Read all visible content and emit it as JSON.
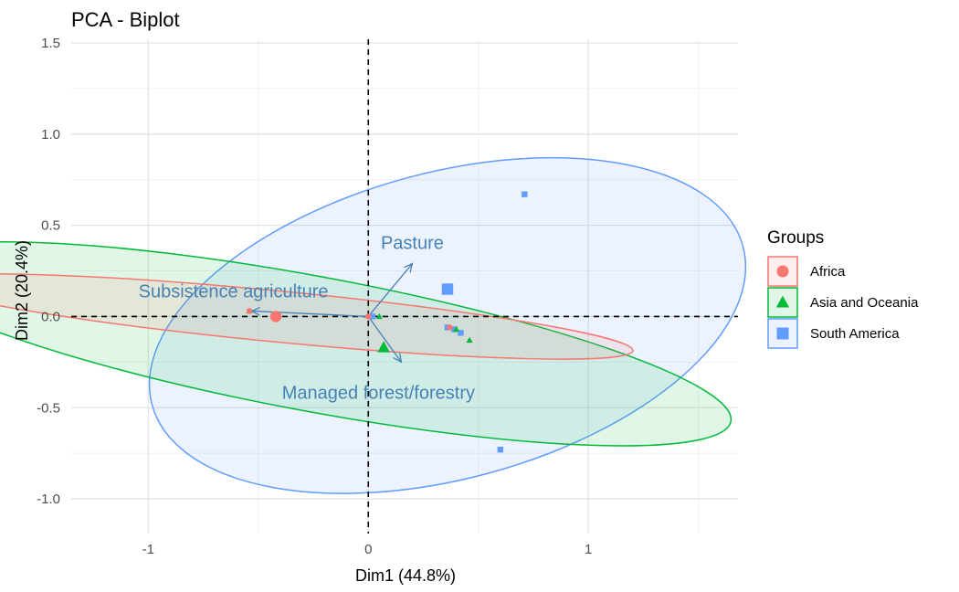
{
  "chart_data": {
    "type": "scatter",
    "title": "PCA - Biplot",
    "xlabel": "Dim1 (44.8%)",
    "ylabel": "Dim2 (20.4%)",
    "xlim": [
      -1.35,
      1.68
    ],
    "ylim": [
      -1.19,
      1.52
    ],
    "xticks": [
      -1,
      0,
      1
    ],
    "xtick_labels": [
      "-1",
      "0",
      "1"
    ],
    "yticks": [
      -1.0,
      -0.5,
      0.0,
      0.5,
      1.0,
      1.5
    ],
    "ytick_labels": [
      "-1.0",
      "-0.5",
      "0.0",
      "0.5",
      "1.0",
      "1.5"
    ],
    "grid": true,
    "legend": {
      "title": "Groups",
      "placement": "right",
      "entries": [
        {
          "label": "Africa",
          "shape": "circle",
          "color": "#F8766D"
        },
        {
          "label": "Asia and Oceania",
          "shape": "triangle",
          "color": "#00BA38"
        },
        {
          "label": "South America",
          "shape": "square",
          "color": "#619CFF"
        }
      ]
    },
    "series": [
      {
        "name": "South America",
        "color": "#619CFF",
        "shape": "square",
        "points": [
          [
            0.71,
            0.67
          ],
          [
            0.6,
            -0.73
          ],
          [
            0.02,
            0.0
          ],
          [
            0.39,
            -0.07
          ],
          [
            0.36,
            -0.06
          ],
          [
            0.42,
            -0.09
          ]
        ],
        "centroid": [
          0.36,
          0.15
        ],
        "ellipse": {
          "center": [
            0.36,
            -0.05
          ],
          "rx": 1.39,
          "ry": 0.84,
          "angle_deg": 15
        }
      },
      {
        "name": "Asia and Oceania",
        "color": "#00BA38",
        "shape": "triangle",
        "points": [
          [
            -0.54,
            0.03
          ],
          [
            0.46,
            -0.13
          ],
          [
            0.05,
            0.0
          ],
          [
            0.4,
            -0.07
          ]
        ],
        "centroid": [
          0.07,
          -0.17
        ],
        "ellipse": {
          "center": [
            -0.25,
            -0.15
          ],
          "rx": 1.93,
          "ry": 0.37,
          "angle_deg": -10.5
        }
      },
      {
        "name": "Africa",
        "color": "#F8766D",
        "shape": "circle",
        "points": [
          [
            -0.54,
            0.03
          ],
          [
            0.0,
            0.0
          ],
          [
            0.37,
            -0.06
          ]
        ],
        "centroid": [
          -0.42,
          0.0
        ],
        "ellipse": {
          "center": [
            -0.41,
            0.0
          ],
          "rx": 1.62,
          "ry": 0.14,
          "angle_deg": -5.5
        }
      }
    ],
    "variables": [
      {
        "name": "Pasture",
        "x": 0.2,
        "y": 0.29
      },
      {
        "name": "Subsistence agriculture",
        "x": -0.53,
        "y": 0.03
      },
      {
        "name": "Managed forest/forestry",
        "x": 0.15,
        "y": -0.25
      }
    ],
    "variable_color": "#4682B4"
  }
}
